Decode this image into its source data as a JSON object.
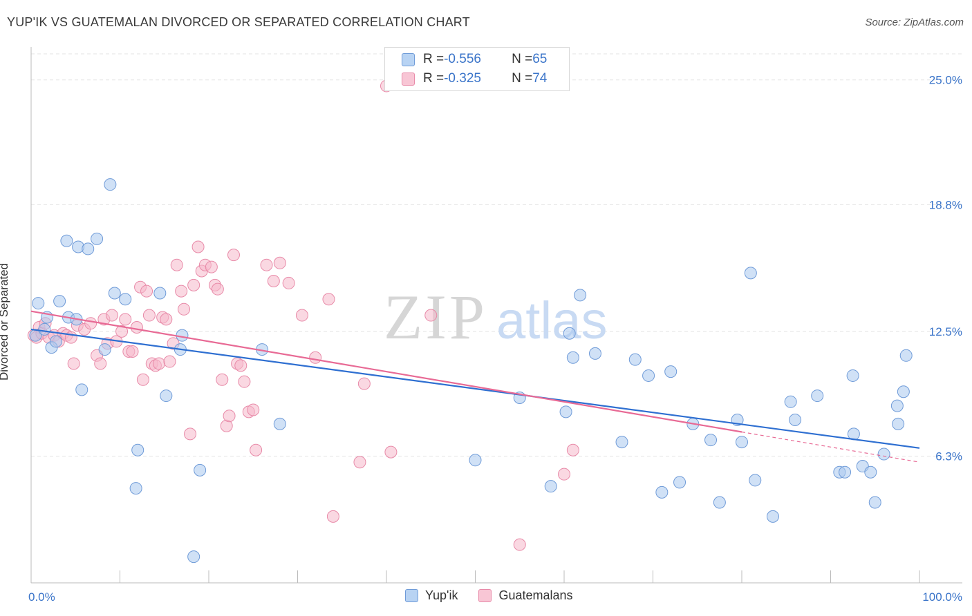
{
  "header": {
    "title": "YUP'IK VS GUATEMALAN DIVORCED OR SEPARATED CORRELATION CHART",
    "source": "Source: ZipAtlas.com"
  },
  "legend": {
    "rows": [
      {
        "r_label": "R = ",
        "r_value": "-0.556",
        "n_label": "N = ",
        "n_value": "65"
      },
      {
        "r_label": "R = ",
        "r_value": "-0.325",
        "n_label": "N = ",
        "n_value": "74"
      }
    ]
  },
  "watermark": {
    "zip": "ZIP",
    "atlas": "atlas"
  },
  "colors": {
    "blue_fill": "#a9c8ef",
    "blue_stroke": "#6f9bd8",
    "blue_line": "#2e6fd1",
    "pink_fill": "#f5b8cb",
    "pink_stroke": "#e88aa8",
    "pink_line": "#e86a95",
    "axis_text": "#3a74c9",
    "grid": "#e3e3e3"
  },
  "chart_data": {
    "type": "scatter",
    "title": "YUP'IK VS GUATEMALAN DIVORCED OR SEPARATED CORRELATION CHART",
    "xlabel": "",
    "ylabel": "Divorced or Separated",
    "xlim": [
      0,
      100
    ],
    "ylim": [
      0,
      26.5
    ],
    "x_tick_labels": [
      "0.0%",
      "100.0%"
    ],
    "y_ticks": [
      6.3,
      12.5,
      18.8,
      25.0
    ],
    "y_tick_labels": [
      "6.3%",
      "12.5%",
      "18.8%",
      "25.0%"
    ],
    "grid": true,
    "legend_position": "top-center",
    "series": [
      {
        "name": "Yup'ik",
        "color": "blue",
        "trend": {
          "x": [
            0,
            100
          ],
          "y": [
            12.6,
            6.7
          ]
        },
        "points": [
          [
            0.5,
            12.3
          ],
          [
            0.8,
            13.9
          ],
          [
            1.5,
            12.6
          ],
          [
            1.8,
            13.2
          ],
          [
            2.3,
            11.7
          ],
          [
            2.8,
            12.0
          ],
          [
            3.2,
            14.0
          ],
          [
            4.0,
            17.0
          ],
          [
            4.2,
            13.2
          ],
          [
            5.1,
            13.1
          ],
          [
            5.3,
            16.7
          ],
          [
            5.7,
            9.6
          ],
          [
            6.4,
            16.6
          ],
          [
            7.4,
            17.1
          ],
          [
            8.3,
            11.6
          ],
          [
            8.9,
            19.8
          ],
          [
            9.4,
            14.4
          ],
          [
            10.6,
            14.1
          ],
          [
            11.8,
            4.7
          ],
          [
            12.0,
            6.6
          ],
          [
            14.5,
            14.4
          ],
          [
            15.2,
            9.3
          ],
          [
            17.0,
            12.3
          ],
          [
            16.8,
            11.6
          ],
          [
            18.3,
            1.3
          ],
          [
            19.0,
            5.6
          ],
          [
            26.0,
            11.6
          ],
          [
            28.0,
            7.9
          ],
          [
            50.0,
            6.1
          ],
          [
            55.0,
            9.2
          ],
          [
            58.5,
            4.8
          ],
          [
            60.2,
            8.5
          ],
          [
            60.6,
            12.4
          ],
          [
            61.0,
            11.2
          ],
          [
            61.8,
            14.3
          ],
          [
            63.5,
            11.4
          ],
          [
            66.5,
            7.0
          ],
          [
            68.0,
            11.1
          ],
          [
            69.5,
            10.3
          ],
          [
            71.0,
            4.5
          ],
          [
            72.0,
            10.5
          ],
          [
            73.0,
            5.0
          ],
          [
            74.5,
            7.9
          ],
          [
            76.5,
            7.1
          ],
          [
            77.5,
            4.0
          ],
          [
            79.5,
            8.1
          ],
          [
            80.0,
            7.0
          ],
          [
            81.0,
            15.4
          ],
          [
            81.5,
            5.1
          ],
          [
            83.5,
            3.3
          ],
          [
            85.5,
            9.0
          ],
          [
            86.0,
            8.1
          ],
          [
            88.5,
            9.3
          ],
          [
            91.0,
            5.5
          ],
          [
            91.6,
            5.5
          ],
          [
            92.5,
            10.3
          ],
          [
            92.6,
            7.4
          ],
          [
            93.6,
            5.8
          ],
          [
            94.5,
            5.5
          ],
          [
            95.0,
            4.0
          ],
          [
            96.0,
            6.4
          ],
          [
            97.5,
            8.8
          ],
          [
            97.6,
            7.9
          ],
          [
            98.2,
            9.5
          ],
          [
            98.5,
            11.3
          ]
        ]
      },
      {
        "name": "Guatemalans",
        "color": "pink",
        "trend": {
          "x": [
            0,
            80
          ],
          "y": [
            13.5,
            7.5
          ]
        },
        "trend_ext": {
          "x": [
            80,
            100
          ],
          "y": [
            7.5,
            6.0
          ]
        },
        "points": [
          [
            0.3,
            12.3
          ],
          [
            0.6,
            12.2
          ],
          [
            0.9,
            12.7
          ],
          [
            1.2,
            12.4
          ],
          [
            1.6,
            12.9
          ],
          [
            2.0,
            12.2
          ],
          [
            2.6,
            12.3
          ],
          [
            3.1,
            12.0
          ],
          [
            3.6,
            12.4
          ],
          [
            4.0,
            12.3
          ],
          [
            4.5,
            12.2
          ],
          [
            4.8,
            10.9
          ],
          [
            5.2,
            12.8
          ],
          [
            6.0,
            12.6
          ],
          [
            6.7,
            12.9
          ],
          [
            7.4,
            11.3
          ],
          [
            7.8,
            10.9
          ],
          [
            8.2,
            13.1
          ],
          [
            8.6,
            11.9
          ],
          [
            9.1,
            13.3
          ],
          [
            9.6,
            12.0
          ],
          [
            10.2,
            12.5
          ],
          [
            10.6,
            13.1
          ],
          [
            11.0,
            11.5
          ],
          [
            11.4,
            11.5
          ],
          [
            11.9,
            12.7
          ],
          [
            12.3,
            14.7
          ],
          [
            12.6,
            10.1
          ],
          [
            13.0,
            14.5
          ],
          [
            13.3,
            13.3
          ],
          [
            13.6,
            10.9
          ],
          [
            14.0,
            10.8
          ],
          [
            14.4,
            10.9
          ],
          [
            14.8,
            13.2
          ],
          [
            15.2,
            13.1
          ],
          [
            15.6,
            11.0
          ],
          [
            16.0,
            11.9
          ],
          [
            16.4,
            15.8
          ],
          [
            16.9,
            14.5
          ],
          [
            17.2,
            13.6
          ],
          [
            17.9,
            7.4
          ],
          [
            18.3,
            14.8
          ],
          [
            18.8,
            16.7
          ],
          [
            19.2,
            15.5
          ],
          [
            19.6,
            15.8
          ],
          [
            20.3,
            15.7
          ],
          [
            20.7,
            14.8
          ],
          [
            21.0,
            14.6
          ],
          [
            21.5,
            10.1
          ],
          [
            22.0,
            7.8
          ],
          [
            22.3,
            8.3
          ],
          [
            22.8,
            16.3
          ],
          [
            23.2,
            10.9
          ],
          [
            23.6,
            10.8
          ],
          [
            24.0,
            10.0
          ],
          [
            24.5,
            8.5
          ],
          [
            25.0,
            8.6
          ],
          [
            25.3,
            6.6
          ],
          [
            26.5,
            15.8
          ],
          [
            27.3,
            15.0
          ],
          [
            28.0,
            15.9
          ],
          [
            29.0,
            14.9
          ],
          [
            30.5,
            13.3
          ],
          [
            32.0,
            11.2
          ],
          [
            33.5,
            14.1
          ],
          [
            34.0,
            3.3
          ],
          [
            37.5,
            9.9
          ],
          [
            37.0,
            6.0
          ],
          [
            40.5,
            6.5
          ],
          [
            40.0,
            24.7
          ],
          [
            45.0,
            13.3
          ],
          [
            55.0,
            1.9
          ],
          [
            61.0,
            6.6
          ],
          [
            60.0,
            5.4
          ]
        ]
      }
    ]
  },
  "bottom_legend": {
    "items": [
      "Yup'ik",
      "Guatemalans"
    ]
  }
}
